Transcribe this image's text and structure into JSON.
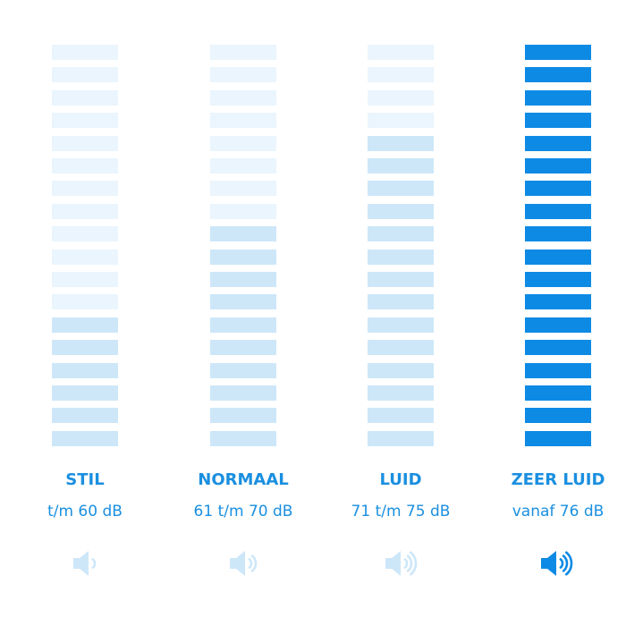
{
  "colors": {
    "off": "#eaf5fd",
    "dim": "#cde7f9",
    "active": "#0d8ae4",
    "text": "#1a8fe0",
    "icon_dim": "#cde7f9",
    "icon_active": "#0d8ae4"
  },
  "segments_total": 18,
  "levels": [
    {
      "label": "STIL",
      "range": "t/m 60 dB",
      "lit_segments": 6,
      "lit_color": "dim",
      "waves": 1,
      "icon": "speaker-volume-low-icon",
      "active": false
    },
    {
      "label": "NORMAAL",
      "range": "61 t/m 70 dB",
      "lit_segments": 10,
      "lit_color": "dim",
      "waves": 2,
      "icon": "speaker-volume-medium-icon",
      "active": false
    },
    {
      "label": "LUID",
      "range": "71 t/m 75 dB",
      "lit_segments": 14,
      "lit_color": "dim",
      "waves": 3,
      "icon": "speaker-volume-high-icon",
      "active": false
    },
    {
      "label": "ZEER LUID",
      "range": "vanaf 76 dB",
      "lit_segments": 18,
      "lit_color": "active",
      "waves": 3,
      "icon": "speaker-volume-max-icon",
      "active": true
    }
  ]
}
